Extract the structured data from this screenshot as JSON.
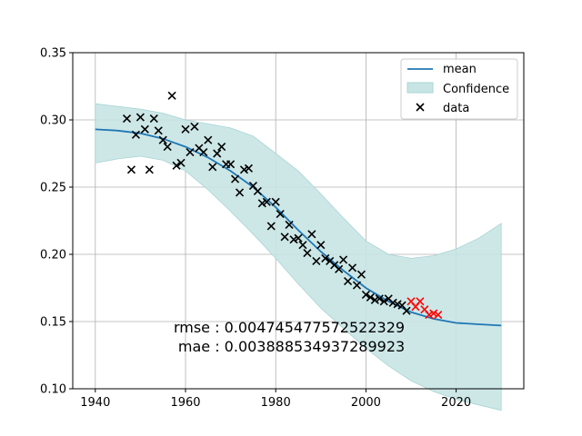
{
  "chart_data": {
    "type": "line",
    "xlim": [
      1935,
      2035
    ],
    "ylim": [
      0.1,
      0.35
    ],
    "xticks": [
      1940,
      1960,
      1980,
      2000,
      2020
    ],
    "yticks": [
      0.1,
      0.15,
      0.2,
      0.25,
      0.3,
      0.35
    ],
    "xtick_labels": [
      "1940",
      "1960",
      "1980",
      "2000",
      "2020"
    ],
    "ytick_labels": [
      "0.10",
      "0.15",
      "0.20",
      "0.25",
      "0.30",
      "0.35"
    ],
    "grid": true,
    "legend_position": "top-right",
    "legend": {
      "mean": "mean",
      "confidence": "Confidence",
      "data": "data"
    },
    "colors": {
      "mean": "#1f77b4",
      "confidence_fill": "#c8e4e4",
      "confidence_edge": "#a9d4d4",
      "data": "#000000",
      "test_data": "#ff0000",
      "grid": "#b0b0b0"
    },
    "mean": {
      "x": [
        1940,
        1945,
        1950,
        1955,
        1960,
        1965,
        1970,
        1975,
        1980,
        1985,
        1990,
        1995,
        2000,
        2005,
        2010,
        2015,
        2020,
        2025,
        2030
      ],
      "y": [
        0.293,
        0.292,
        0.29,
        0.286,
        0.28,
        0.272,
        0.262,
        0.25,
        0.235,
        0.218,
        0.202,
        0.188,
        0.175,
        0.165,
        0.157,
        0.152,
        0.149,
        0.148,
        0.147
      ]
    },
    "confidence": {
      "x": [
        1940,
        1945,
        1950,
        1955,
        1960,
        1965,
        1970,
        1975,
        1980,
        1985,
        1990,
        1995,
        2000,
        2005,
        2010,
        2015,
        2020,
        2025,
        2030
      ],
      "upper": [
        0.312,
        0.31,
        0.308,
        0.305,
        0.3,
        0.297,
        0.294,
        0.288,
        0.275,
        0.262,
        0.245,
        0.227,
        0.21,
        0.2,
        0.197,
        0.199,
        0.204,
        0.212,
        0.223
      ],
      "lower": [
        0.268,
        0.271,
        0.273,
        0.27,
        0.262,
        0.248,
        0.232,
        0.215,
        0.197,
        0.178,
        0.16,
        0.145,
        0.13,
        0.117,
        0.106,
        0.098,
        0.092,
        0.088,
        0.084
      ]
    },
    "data_points": {
      "x": [
        1947,
        1948,
        1949,
        1950,
        1951,
        1952,
        1953,
        1954,
        1955,
        1956,
        1957,
        1958,
        1959,
        1960,
        1961,
        1962,
        1963,
        1964,
        1965,
        1966,
        1967,
        1968,
        1969,
        1970,
        1971,
        1972,
        1973,
        1974,
        1975,
        1976,
        1977,
        1978,
        1979,
        1980,
        1981,
        1982,
        1983,
        1984,
        1985,
        1986,
        1987,
        1988,
        1989,
        1990,
        1991,
        1992,
        1993,
        1994,
        1995,
        1996,
        1997,
        1998,
        1999,
        2000,
        2001,
        2002,
        2003,
        2004,
        2005,
        2006,
        2007,
        2008,
        2009
      ],
      "y": [
        0.301,
        0.263,
        0.289,
        0.302,
        0.293,
        0.263,
        0.301,
        0.292,
        0.285,
        0.28,
        0.318,
        0.266,
        0.268,
        0.293,
        0.276,
        0.295,
        0.279,
        0.276,
        0.285,
        0.265,
        0.275,
        0.28,
        0.267,
        0.267,
        0.256,
        0.246,
        0.263,
        0.264,
        0.251,
        0.247,
        0.238,
        0.239,
        0.221,
        0.239,
        0.23,
        0.213,
        0.222,
        0.211,
        0.212,
        0.207,
        0.201,
        0.215,
        0.195,
        0.207,
        0.197,
        0.195,
        0.192,
        0.189,
        0.196,
        0.18,
        0.19,
        0.177,
        0.185,
        0.17,
        0.168,
        0.166,
        0.167,
        0.165,
        0.167,
        0.164,
        0.163,
        0.162,
        0.158
      ]
    },
    "test_points": {
      "x": [
        2010,
        2011,
        2012,
        2013,
        2014,
        2015,
        2016
      ],
      "y": [
        0.165,
        0.161,
        0.165,
        0.159,
        0.155,
        0.156,
        0.155
      ]
    },
    "annotations": [
      "rmse : 0.004745477572522329",
      " mae : 0.003888534937289923"
    ]
  }
}
